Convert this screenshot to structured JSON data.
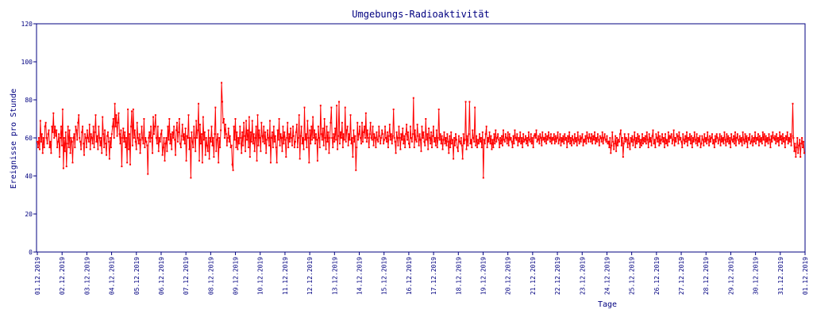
{
  "chart_data": {
    "type": "line",
    "title": "Umgebungs-Radioaktivität",
    "xlabel": "Tage",
    "ylabel": "Ereignisse pro Stunde",
    "ylim": [
      0,
      120
    ],
    "yticks": [
      0,
      20,
      40,
      60,
      80,
      100,
      120
    ],
    "grid": false,
    "line_color": "#ff0000",
    "axis_color": "#000080",
    "xticks": [
      "01.12.2019",
      "02.12.2019",
      "03.12.2019",
      "04.12.2019",
      "05.12.2019",
      "06.12.2019",
      "07.12.2019",
      "08.12.2019",
      "09.12.2019",
      "10.12.2019",
      "11.12.2019",
      "12.12.2019",
      "13.12.2019",
      "14.12.2019",
      "15.12.2019",
      "16.12.2019",
      "17.12.2019",
      "18.12.2019",
      "19.12.2019",
      "20.12.2019",
      "21.12.2019",
      "22.12.2019",
      "23.12.2019",
      "24.12.2019",
      "25.12.2019",
      "26.12.2019",
      "27.12.2019",
      "28.12.2019",
      "29.12.2019",
      "30.12.2019",
      "31.12.2019",
      "01.12.2019"
    ],
    "series": [
      {
        "values_per_hour": [
          58,
          55,
          60,
          54,
          69,
          58,
          62,
          52,
          60,
          55,
          66,
          68,
          60,
          57,
          62,
          64,
          55,
          58,
          52,
          66,
          63,
          73,
          60,
          66,
          61,
          64,
          55,
          58,
          62,
          50,
          60,
          66,
          56,
          75,
          44,
          60,
          53,
          63,
          45,
          57,
          66,
          55,
          64,
          52,
          60,
          58,
          47,
          60,
          62,
          55,
          66,
          64,
          59,
          68,
          72,
          60,
          58,
          54,
          63,
          66,
          57,
          51,
          62,
          60,
          55,
          64,
          60,
          58,
          67,
          54,
          62,
          60,
          57,
          66,
          55,
          63,
          72,
          58,
          61,
          54,
          66,
          60,
          56,
          60,
          52,
          71,
          62,
          55,
          64,
          57,
          51,
          61,
          63,
          58,
          49,
          60,
          55,
          62,
          66,
          70,
          60,
          78,
          66,
          72,
          61,
          68,
          73,
          62,
          57,
          64,
          45,
          60,
          65,
          58,
          63,
          55,
          60,
          47,
          75,
          54,
          62,
          46,
          66,
          74,
          56,
          75,
          60,
          64,
          58,
          54,
          68,
          60,
          57,
          62,
          52,
          59,
          66,
          60,
          57,
          70,
          55,
          60,
          58,
          56,
          41,
          60,
          63,
          58,
          66,
          60,
          52,
          71,
          62,
          66,
          72,
          60,
          57,
          66,
          53,
          60,
          58,
          62,
          64,
          51,
          55,
          60,
          48,
          57,
          60,
          53,
          66,
          59,
          70,
          57,
          62,
          54,
          63,
          60,
          66,
          59,
          51,
          64,
          68,
          58,
          63,
          70,
          57,
          55,
          61,
          67,
          59,
          62,
          57,
          65,
          48,
          61,
          60,
          72,
          54,
          60,
          39,
          63,
          58,
          55,
          66,
          60,
          53,
          69,
          60,
          64,
          78,
          48,
          67,
          57,
          62,
          47,
          71,
          59,
          63,
          51,
          60,
          56,
          53,
          64,
          49,
          60,
          58,
          66,
          56,
          60,
          50,
          62,
          76,
          53,
          59,
          62,
          47,
          60,
          55,
          64,
          89,
          79,
          68,
          70,
          60,
          67,
          62,
          56,
          60,
          65,
          58,
          61,
          55,
          56,
          46,
          43,
          66,
          59,
          70,
          55,
          63,
          54,
          60,
          57,
          66,
          60,
          52,
          63,
          56,
          68,
          61,
          53,
          69,
          59,
          64,
          55,
          71,
          50,
          63,
          58,
          69,
          57,
          62,
          53,
          60,
          66,
          48,
          72,
          56,
          64,
          60,
          53,
          68,
          61,
          58,
          66,
          57,
          63,
          52,
          59,
          64,
          60,
          56,
          69,
          47,
          60,
          63,
          55,
          66,
          58,
          61,
          55,
          47,
          64,
          59,
          70,
          56,
          62,
          60,
          53,
          66,
          57,
          63,
          59,
          50,
          60,
          68,
          55,
          62,
          58,
          65,
          60,
          56,
          66,
          61,
          55,
          58,
          63,
          67,
          55,
          60,
          72,
          49,
          61,
          66,
          57,
          60,
          54,
          76,
          59,
          62,
          55,
          69,
          60,
          47,
          64,
          57,
          66,
          59,
          71,
          60,
          64,
          57,
          62,
          59,
          48,
          66,
          60,
          55,
          77,
          62,
          59,
          65,
          56,
          70,
          60,
          54,
          66,
          58,
          63,
          52,
          60,
          68,
          76,
          60,
          55,
          62,
          58,
          65,
          59,
          77,
          54,
          61,
          79,
          57,
          63,
          60,
          68,
          55,
          62,
          59,
          76,
          58,
          64,
          66,
          56,
          62,
          59,
          72,
          57,
          60,
          50,
          64,
          58,
          61,
          43,
          55,
          68,
          59,
          62,
          66,
          60,
          57,
          68,
          58,
          63,
          66,
          60,
          73,
          58,
          64,
          60,
          55,
          62,
          68,
          60,
          59,
          66,
          56,
          62,
          60,
          55,
          63,
          59,
          58,
          66,
          61,
          57,
          60,
          64,
          62,
          57,
          59,
          66,
          60,
          58,
          63,
          55,
          61,
          67,
          59,
          62,
          57,
          61,
          75,
          60,
          58,
          52,
          63,
          60,
          56,
          66,
          60,
          54,
          62,
          59,
          65,
          57,
          61,
          55,
          62,
          67,
          59,
          63,
          57,
          55,
          66,
          60,
          58,
          62,
          81,
          55,
          64,
          59,
          58,
          67,
          61,
          56,
          62,
          59,
          53,
          66,
          60,
          63,
          58,
          56,
          70,
          59,
          62,
          54,
          65,
          60,
          57,
          63,
          55,
          61,
          66,
          58,
          60,
          56,
          64,
          55,
          60,
          75,
          59,
          62,
          57,
          61,
          54,
          59,
          63,
          57,
          60,
          56,
          62,
          58,
          52,
          61,
          55,
          63,
          57,
          59,
          49,
          60,
          56,
          62,
          59,
          55,
          53,
          61,
          58,
          57,
          60,
          56,
          49,
          62,
          57,
          59,
          79,
          54,
          61,
          56,
          62,
          79,
          57,
          59,
          55,
          64,
          60,
          58,
          76,
          56,
          61,
          55,
          59,
          57,
          62,
          58,
          60,
          55,
          63,
          39,
          59,
          57,
          62,
          66,
          55,
          60,
          58,
          63,
          57,
          61,
          54,
          59,
          55,
          62,
          57,
          64,
          58,
          60,
          62,
          59,
          55,
          60,
          57,
          61,
          56,
          64,
          59,
          58,
          62,
          60,
          57,
          63,
          56,
          62,
          59,
          60,
          58,
          55,
          61,
          57,
          64,
          60,
          59,
          62,
          56,
          60,
          58,
          63,
          57,
          60,
          55,
          62,
          58,
          59,
          61,
          57,
          60,
          56,
          63,
          59,
          58,
          62,
          57,
          60,
          55,
          61,
          62,
          60,
          64,
          58,
          59,
          61,
          57,
          62,
          60,
          56,
          63,
          59,
          60,
          58,
          62,
          57,
          61,
          59,
          63,
          60,
          58,
          62,
          57,
          60,
          59,
          62,
          57,
          61,
          58,
          60,
          63,
          57,
          59,
          62,
          56,
          60,
          58,
          61,
          57,
          62,
          59,
          60,
          55,
          61,
          58,
          63,
          57,
          60,
          56,
          61,
          59,
          57,
          62,
          58,
          60,
          56,
          63,
          59,
          57,
          61,
          58,
          60,
          62,
          56,
          59,
          58,
          61,
          57,
          63,
          60,
          58,
          62,
          60,
          58,
          62,
          57,
          61,
          59,
          63,
          57,
          60,
          58,
          62,
          59,
          56,
          61,
          60,
          58,
          63,
          57,
          60,
          62,
          59,
          58,
          61,
          57,
          58,
          55,
          60,
          52,
          56,
          63,
          58,
          54,
          57,
          61,
          53,
          60,
          56,
          59,
          58,
          62,
          64,
          56,
          60,
          50,
          57,
          62,
          58,
          60,
          59,
          55,
          62,
          57,
          54,
          60,
          58,
          61,
          56,
          59,
          63,
          55,
          60,
          57,
          62,
          58,
          61,
          55,
          59,
          56,
          62,
          57,
          60,
          58,
          61,
          57,
          63,
          59,
          55,
          62,
          58,
          60,
          56,
          61,
          64,
          57,
          59,
          55,
          62,
          60,
          58,
          63,
          56,
          61,
          57,
          59,
          62,
          58,
          60,
          55,
          62,
          57,
          59,
          56,
          63,
          58,
          61,
          60,
          62,
          57,
          59,
          64,
          56,
          60,
          58,
          62,
          61,
          57,
          63,
          59,
          60,
          58,
          55,
          62,
          59,
          57,
          61,
          58,
          63,
          56,
          60,
          59,
          62,
          57,
          61,
          55,
          60,
          58,
          63,
          59,
          57,
          62,
          56,
          60,
          58,
          61,
          55,
          57,
          61,
          59,
          56,
          62,
          58,
          60,
          57,
          63,
          59,
          56,
          61,
          58,
          60,
          62,
          57,
          59,
          55,
          61,
          58,
          62,
          60,
          57,
          59,
          62,
          56,
          61,
          58,
          60,
          57,
          63,
          59,
          56,
          62,
          58,
          61,
          57,
          60,
          55,
          62,
          59,
          58,
          61,
          57,
          63,
          56,
          60,
          62,
          59,
          57,
          61,
          58,
          60,
          56,
          63,
          59,
          57,
          62,
          58,
          61,
          55,
          60,
          59,
          62,
          57,
          58,
          61,
          56,
          60,
          58,
          63,
          57,
          60,
          59,
          62,
          56,
          61,
          58,
          60,
          57,
          63,
          59,
          62,
          56,
          61,
          58,
          60,
          57,
          62,
          59,
          55,
          61,
          58,
          63,
          60,
          59,
          61,
          57,
          62,
          58,
          60,
          56,
          63,
          59,
          61,
          57,
          62,
          58,
          60,
          55,
          61,
          59,
          63,
          57,
          60,
          58,
          62,
          56,
          61,
          78,
          60,
          53,
          57,
          50,
          55,
          60,
          52,
          56,
          59,
          50,
          57,
          60,
          55,
          58,
          52
        ]
      }
    ]
  }
}
